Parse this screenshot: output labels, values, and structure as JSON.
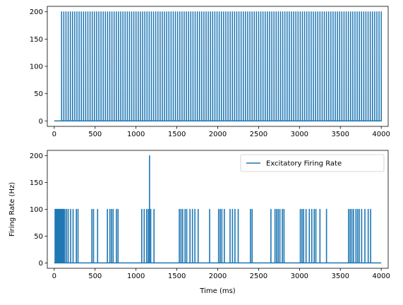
{
  "series_color": "#1f77b4",
  "chart_data": [
    {
      "type": "line",
      "title": "",
      "xlabel": "",
      "ylabel": "",
      "xlim": [
        -85,
        4085
      ],
      "ylim": [
        -10,
        210
      ],
      "xticks": [
        0,
        500,
        1000,
        1500,
        2000,
        2500,
        3000,
        3500,
        4000
      ],
      "yticks": [
        0,
        50,
        100,
        150,
        200
      ],
      "grid": false,
      "legend": null,
      "series": [
        {
          "baseline": 0,
          "spike_height": 200,
          "spike_start": 90,
          "spike_end": 4000,
          "spike_count": 147
        }
      ]
    },
    {
      "type": "line",
      "title": "",
      "xlabel": "Time (ms)",
      "ylabel": "Firing Rate (Hz)",
      "xlim": [
        -85,
        4085
      ],
      "ylim": [
        -10,
        210
      ],
      "xticks": [
        0,
        500,
        1000,
        1500,
        2000,
        2500,
        3000,
        3500,
        4000
      ],
      "yticks": [
        0,
        50,
        100,
        150,
        200
      ],
      "grid": false,
      "legend": "top-right",
      "series": [
        {
          "name": "Excitatory Firing Rate",
          "baseline": 0,
          "spikes": [
            [
              10,
              100
            ],
            [
              18,
              100
            ],
            [
              25,
              100
            ],
            [
              33,
              100
            ],
            [
              45,
              100
            ],
            [
              55,
              100
            ],
            [
              65,
              100
            ],
            [
              75,
              100
            ],
            [
              85,
              100
            ],
            [
              95,
              100
            ],
            [
              105,
              100
            ],
            [
              115,
              100
            ],
            [
              130,
              100
            ],
            [
              150,
              100
            ],
            [
              170,
              100
            ],
            [
              200,
              100
            ],
            [
              230,
              100
            ],
            [
              270,
              100
            ],
            [
              290,
              100
            ],
            [
              460,
              100
            ],
            [
              480,
              100
            ],
            [
              530,
              100
            ],
            [
              650,
              100
            ],
            [
              680,
              100
            ],
            [
              700,
              100
            ],
            [
              720,
              100
            ],
            [
              760,
              100
            ],
            [
              780,
              100
            ],
            [
              1070,
              100
            ],
            [
              1100,
              100
            ],
            [
              1130,
              100
            ],
            [
              1150,
              100
            ],
            [
              1165,
              200
            ],
            [
              1180,
              100
            ],
            [
              1220,
              100
            ],
            [
              1530,
              100
            ],
            [
              1550,
              100
            ],
            [
              1570,
              100
            ],
            [
              1600,
              100
            ],
            [
              1620,
              100
            ],
            [
              1660,
              100
            ],
            [
              1690,
              100
            ],
            [
              1720,
              100
            ],
            [
              1760,
              100
            ],
            [
              1900,
              100
            ],
            [
              2010,
              100
            ],
            [
              2030,
              100
            ],
            [
              2050,
              100
            ],
            [
              2080,
              100
            ],
            [
              2150,
              100
            ],
            [
              2180,
              100
            ],
            [
              2210,
              100
            ],
            [
              2250,
              100
            ],
            [
              2400,
              100
            ],
            [
              2420,
              100
            ],
            [
              2650,
              100
            ],
            [
              2700,
              100
            ],
            [
              2720,
              100
            ],
            [
              2740,
              100
            ],
            [
              2760,
              100
            ],
            [
              2790,
              100
            ],
            [
              2810,
              100
            ],
            [
              3010,
              100
            ],
            [
              3030,
              100
            ],
            [
              3050,
              100
            ],
            [
              3080,
              100
            ],
            [
              3120,
              100
            ],
            [
              3150,
              100
            ],
            [
              3180,
              100
            ],
            [
              3200,
              100
            ],
            [
              3250,
              100
            ],
            [
              3330,
              100
            ],
            [
              3600,
              100
            ],
            [
              3620,
              100
            ],
            [
              3640,
              100
            ],
            [
              3660,
              100
            ],
            [
              3690,
              100
            ],
            [
              3710,
              100
            ],
            [
              3730,
              100
            ],
            [
              3760,
              100
            ],
            [
              3800,
              100
            ],
            [
              3840,
              100
            ],
            [
              3870,
              100
            ]
          ]
        }
      ]
    }
  ]
}
